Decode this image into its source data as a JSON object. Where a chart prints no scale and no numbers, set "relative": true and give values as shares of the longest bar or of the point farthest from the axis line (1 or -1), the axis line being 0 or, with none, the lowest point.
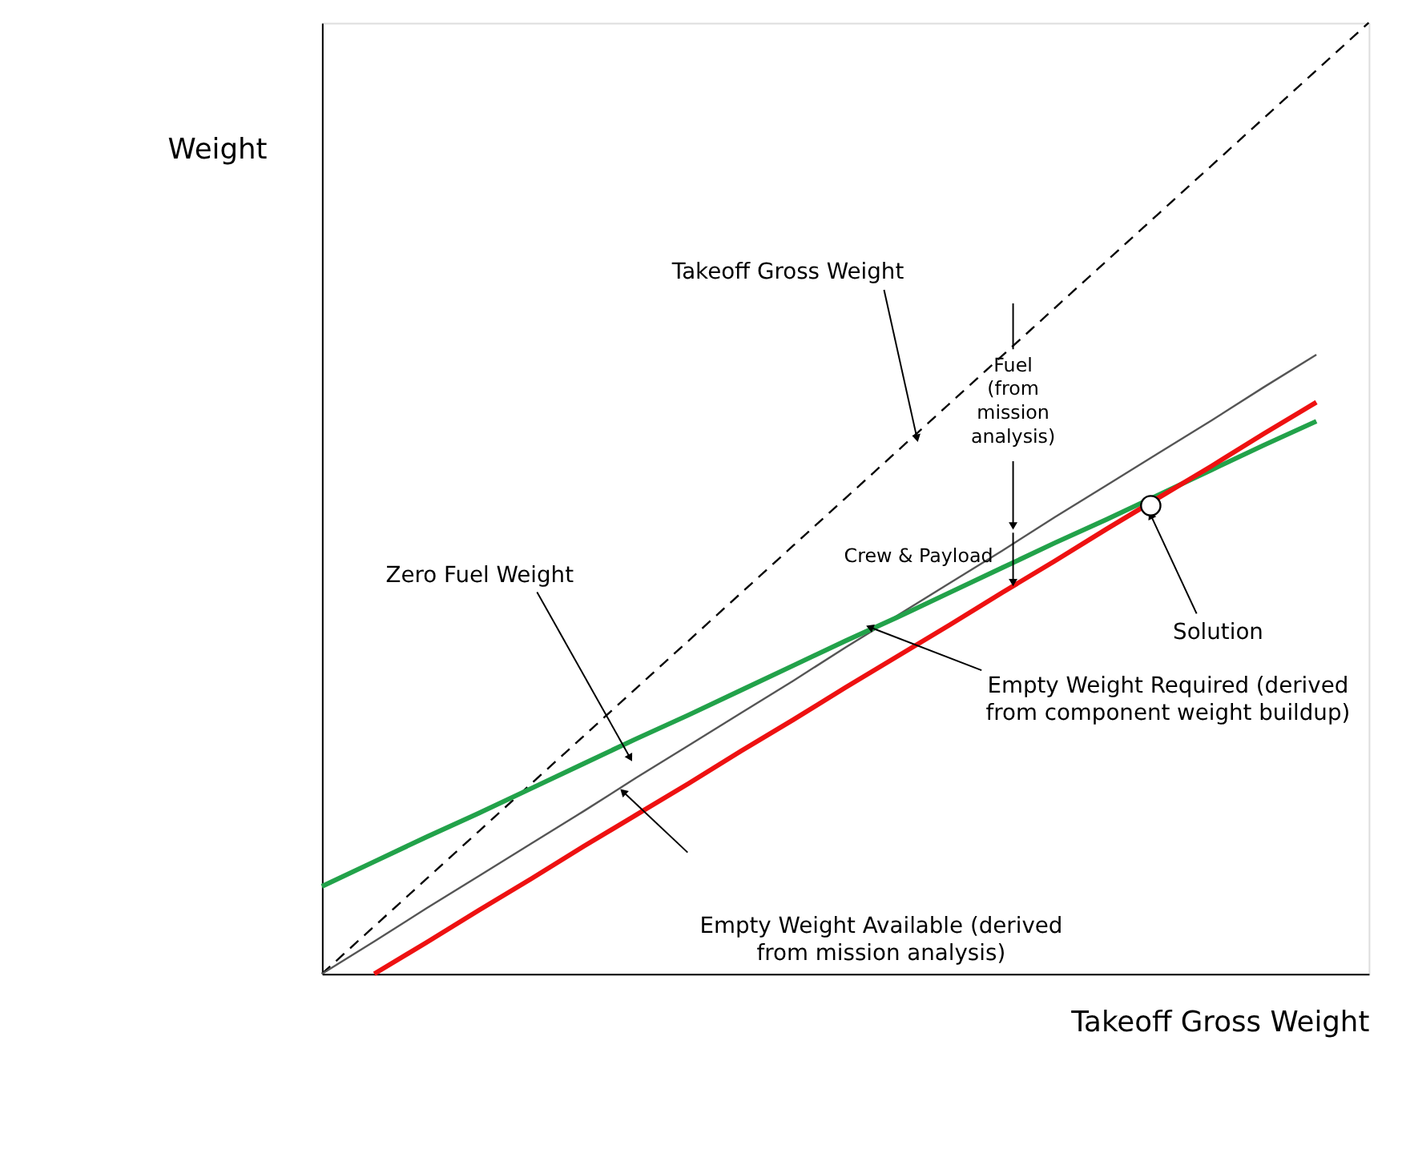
{
  "chart_data": {
    "type": "line",
    "relative": true,
    "xlabel": "Takeoff Gross Weight",
    "ylabel": "Weight",
    "ylim": [
      0,
      1
    ],
    "tick_labels": false,
    "grid": false,
    "categories": [
      null,
      null,
      null,
      null,
      null,
      null,
      null,
      null,
      null,
      null,
      null,
      null,
      null,
      null,
      null,
      null,
      null,
      null,
      null,
      null,
      null
    ],
    "series": [
      {
        "color": "#000000",
        "line_style": "dashed",
        "values": [
          0,
          0.05,
          0.1,
          0.15,
          0.2,
          0.25,
          0.3,
          0.35,
          0.4,
          0.45,
          0.5,
          0.55,
          0.6,
          0.65,
          0.7,
          0.75,
          0.8,
          0.85,
          0.9,
          0.95,
          1
        ]
      },
      {
        "color": "#555555",
        "line_style": "solid",
        "values": [
          0,
          0.034,
          0.069,
          0.103,
          0.137,
          0.171,
          0.206,
          0.24,
          0.274,
          0.308,
          0.343,
          0.377,
          0.411,
          0.445,
          0.48,
          0.514,
          0.548,
          0.582,
          0.617,
          0.651,
          null
        ]
      },
      {
        "color": "#22a24a",
        "line_style": "solid",
        "values": [
          0.092,
          0.118,
          0.144,
          0.169,
          0.195,
          0.221,
          0.247,
          0.272,
          0.298,
          0.324,
          0.35,
          0.375,
          0.401,
          0.427,
          0.453,
          0.478,
          0.504,
          0.53,
          0.556,
          0.581,
          null
        ]
      },
      {
        "color": "#ee1111",
        "line_style": "solid",
        "values": [
          null,
          0,
          0.033,
          0.067,
          0.1,
          0.134,
          0.167,
          0.2,
          0.234,
          0.267,
          0.301,
          0.334,
          0.367,
          0.401,
          0.434,
          0.468,
          0.501,
          0.534,
          0.568,
          0.601,
          null
        ]
      }
    ],
    "annotations": [
      "Takeoff Gross Weight",
      "Fuel\n(from\nmission\nanalysis)",
      "Crew & Payload",
      "Zero Fuel Weight",
      "Empty Weight Required (derived\nfrom component weight buildup)",
      "Empty Weight Available (derived\nfrom mission analysis)",
      "Solution"
    ]
  }
}
